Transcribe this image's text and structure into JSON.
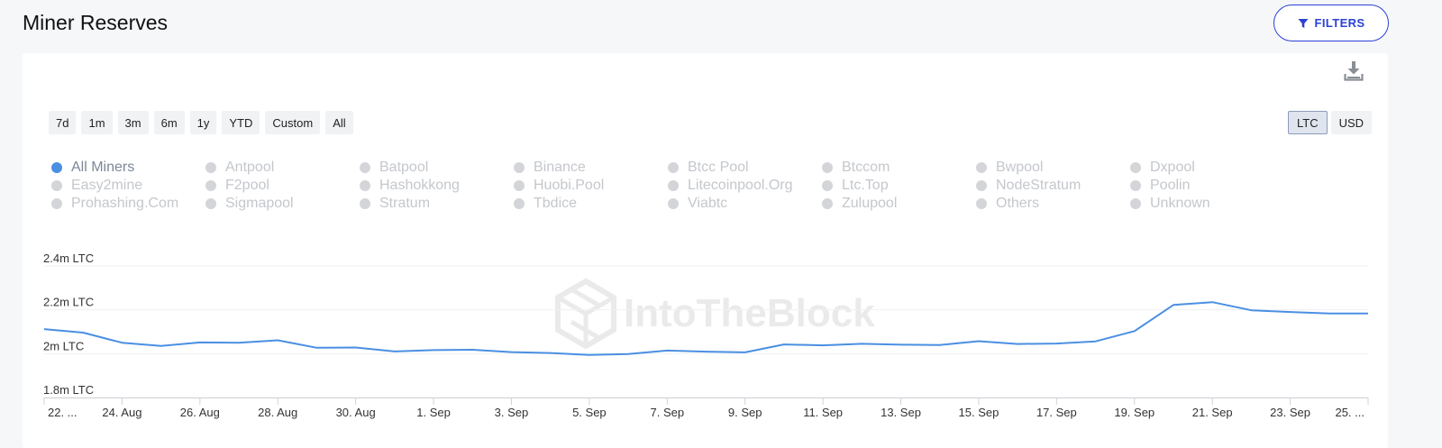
{
  "header": {
    "title": "Miner Reserves",
    "filters_label": "FILTERS"
  },
  "toolbar": {
    "ranges": [
      "7d",
      "1m",
      "3m",
      "6m",
      "1y",
      "YTD",
      "Custom",
      "All"
    ],
    "units": [
      "LTC",
      "USD"
    ],
    "active_unit": "LTC"
  },
  "legend": {
    "items": [
      "All Miners",
      "Antpool",
      "Batpool",
      "Binance",
      "Btcc Pool",
      "Btccom",
      "Bwpool",
      "Dxpool",
      "Easy2mine",
      "F2pool",
      "Hashokkong",
      "Huobi.Pool",
      "Litecoinpool.Org",
      "Ltc.Top",
      "NodeStratum",
      "Poolin",
      "Prohashing.Com",
      "Sigmapool",
      "Stratum",
      "Tbdice",
      "Viabtc",
      "Zulupool",
      "Others",
      "Unknown"
    ],
    "active": "All Miners"
  },
  "watermark": "IntoTheBlock",
  "colors": {
    "accent": "#2a41d6",
    "line": "#4b8fe2",
    "legend_active_dot": "#4b8fe2",
    "legend_inactive_dot": "#d3d5d8"
  },
  "chart_data": {
    "type": "line",
    "y_ticks": [
      {
        "value": 2.4,
        "label": "2.4m LTC"
      },
      {
        "value": 2.2,
        "label": "2.2m LTC"
      },
      {
        "value": 2.0,
        "label": "2m LTC"
      },
      {
        "value": 1.8,
        "label": "1.8m LTC"
      }
    ],
    "ylim": [
      1.78,
      2.43
    ],
    "x_ticks": [
      {
        "day": 0,
        "label": "22. ..."
      },
      {
        "day": 2,
        "label": "24. Aug"
      },
      {
        "day": 4,
        "label": "26. Aug"
      },
      {
        "day": 6,
        "label": "28. Aug"
      },
      {
        "day": 8,
        "label": "30. Aug"
      },
      {
        "day": 10,
        "label": "1. Sep"
      },
      {
        "day": 12,
        "label": "3. Sep"
      },
      {
        "day": 14,
        "label": "5. Sep"
      },
      {
        "day": 16,
        "label": "7. Sep"
      },
      {
        "day": 18,
        "label": "9. Sep"
      },
      {
        "day": 20,
        "label": "11. Sep"
      },
      {
        "day": 22,
        "label": "13. Sep"
      },
      {
        "day": 24,
        "label": "15. Sep"
      },
      {
        "day": 26,
        "label": "17. Sep"
      },
      {
        "day": 28,
        "label": "19. Sep"
      },
      {
        "day": 30,
        "label": "21. Sep"
      },
      {
        "day": 32,
        "label": "23. Sep"
      },
      {
        "day": 34,
        "label": "25. ..."
      }
    ],
    "xlim": [
      0,
      34
    ],
    "series": [
      {
        "name": "All Miners",
        "values": [
          [
            0,
            2.112
          ],
          [
            1,
            2.096
          ],
          [
            2,
            2.05
          ],
          [
            3,
            2.035
          ],
          [
            4,
            2.051
          ],
          [
            5,
            2.05
          ],
          [
            6,
            2.061
          ],
          [
            7,
            2.027
          ],
          [
            8,
            2.028
          ],
          [
            9,
            2.01
          ],
          [
            10,
            2.016
          ],
          [
            11,
            2.018
          ],
          [
            12,
            2.007
          ],
          [
            13,
            2.003
          ],
          [
            14,
            1.994
          ],
          [
            15,
            1.998
          ],
          [
            16,
            2.014
          ],
          [
            17,
            2.009
          ],
          [
            18,
            2.006
          ],
          [
            19,
            2.042
          ],
          [
            20,
            2.038
          ],
          [
            21,
            2.045
          ],
          [
            22,
            2.041
          ],
          [
            23,
            2.039
          ],
          [
            24,
            2.057
          ],
          [
            25,
            2.044
          ],
          [
            26,
            2.046
          ],
          [
            27,
            2.056
          ],
          [
            28,
            2.103
          ],
          [
            29,
            2.222
          ],
          [
            30,
            2.235
          ],
          [
            31,
            2.198
          ],
          [
            32,
            2.19
          ],
          [
            33,
            2.183
          ],
          [
            34,
            2.183
          ]
        ]
      }
    ],
    "grid": true,
    "legend_position": "top"
  }
}
